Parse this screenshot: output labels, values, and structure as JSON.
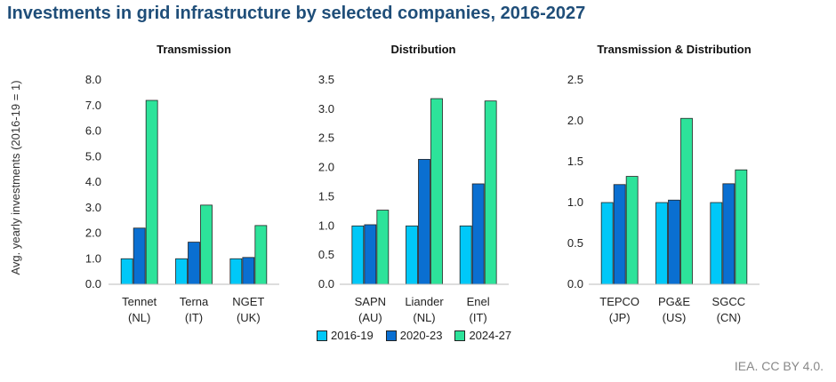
{
  "title": "Investments in grid infrastructure by selected companies, 2016-2027",
  "ylabel": "Avg. yearly investments (2016-19 = 1)",
  "credit": "IEA. CC BY 4.0.",
  "legend": [
    {
      "name": "2016-19",
      "color": "#00c8f8"
    },
    {
      "name": "2020-23",
      "color": "#0a6fd1"
    },
    {
      "name": "2024-27",
      "color": "#2de39a"
    }
  ],
  "chart_data": [
    {
      "type": "bar",
      "title": "Transmission",
      "categories": [
        [
          "Tennet",
          "(NL)"
        ],
        [
          "Terna",
          "(IT)"
        ],
        [
          "NGET",
          "(UK)"
        ]
      ],
      "ylim": [
        0,
        8
      ],
      "yticks": [
        "0.0",
        "1.0",
        "2.0",
        "3.0",
        "4.0",
        "5.0",
        "6.0",
        "7.0",
        "8.0"
      ],
      "series": [
        {
          "name": "2016-19",
          "values": [
            1.0,
            1.0,
            1.0
          ]
        },
        {
          "name": "2020-23",
          "values": [
            2.2,
            1.65,
            1.05
          ]
        },
        {
          "name": "2024-27",
          "values": [
            7.2,
            3.1,
            2.3
          ]
        }
      ]
    },
    {
      "type": "bar",
      "title": "Distribution",
      "categories": [
        [
          "SAPN",
          "(AU)"
        ],
        [
          "Liander",
          "(NL)"
        ],
        [
          "Enel",
          "(IT)"
        ]
      ],
      "ylim": [
        0,
        3.5
      ],
      "yticks": [
        "0.0",
        "0.5",
        "1.0",
        "1.5",
        "2.0",
        "2.5",
        "3.0",
        "3.5"
      ],
      "series": [
        {
          "name": "2016-19",
          "values": [
            1.0,
            1.0,
            1.0
          ]
        },
        {
          "name": "2020-23",
          "values": [
            1.02,
            2.14,
            1.72
          ]
        },
        {
          "name": "2024-27",
          "values": [
            1.27,
            3.18,
            3.14
          ]
        }
      ]
    },
    {
      "type": "bar",
      "title": "Transmission & Distribution",
      "categories": [
        [
          "TEPCO",
          "(JP)"
        ],
        [
          "PG&E",
          "(US)"
        ],
        [
          "SGCC",
          "(CN)"
        ]
      ],
      "ylim": [
        0,
        2.5
      ],
      "yticks": [
        "0.0",
        "0.5",
        "1.0",
        "1.5",
        "2.0",
        "2.5"
      ],
      "series": [
        {
          "name": "2016-19",
          "values": [
            1.0,
            1.0,
            1.0
          ]
        },
        {
          "name": "2020-23",
          "values": [
            1.22,
            1.03,
            1.23
          ]
        },
        {
          "name": "2024-27",
          "values": [
            1.32,
            2.03,
            1.4
          ]
        }
      ]
    }
  ]
}
